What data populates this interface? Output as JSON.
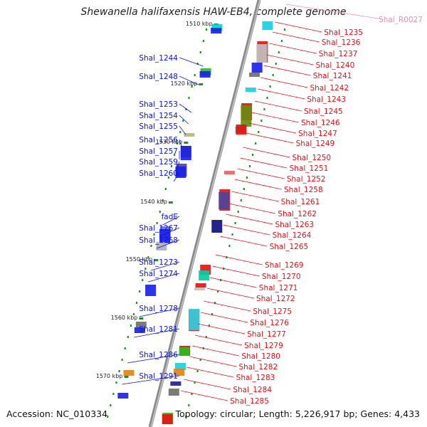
{
  "header": {
    "title": "Shewanella halifaxensis HAW-EB4, complete genome"
  },
  "footer": {
    "accession": "Accession: NC_010334",
    "summary": "Topology: circular; Length: 5,226,917 bp; Genes: 4,433"
  },
  "scale_labels": [
    "1510 kbp",
    "1520 kbp",
    "1530 kbp",
    "1540 kbp",
    "1550 kbp",
    "1560 kbp",
    "1570 kbp"
  ],
  "genes": {
    "reverse_strand": [
      "Shal_1244",
      "Shal_1248",
      "Shal_1253",
      "Shal_1254",
      "Shal_1255",
      "Shal_1256",
      "Shal_1257",
      "Shal_1259",
      "Shal_1260",
      "fadE",
      "Shal_1267",
      "Shal_1268",
      "Shal_1273",
      "Shal_1274",
      "Shal_1278",
      "Shal_1281",
      "Shal_1286",
      "Shal_1291"
    ],
    "forward_strand": [
      "Shal_1235",
      "Shal_1236",
      "Shal_1237",
      "Shal_1240",
      "Shal_1241",
      "Shal_1242",
      "Shal_1243",
      "Shal_1245",
      "Shal_1246",
      "Shal_1247",
      "Shal_1249",
      "Shal_1250",
      "Shal_1251",
      "Shal_1252",
      "Shal_1258",
      "Shal_1261",
      "Shal_1262",
      "Shal_1263",
      "Shal_1264",
      "Shal_1265",
      "Shal_1269",
      "Shal_1270",
      "Shal_1271",
      "Shal_1272",
      "Shal_1275",
      "Shal_1276",
      "Shal_1277",
      "Shal_1279",
      "Shal_1280",
      "Shal_1282",
      "Shal_1283",
      "Shal_1284",
      "Shal_1285"
    ],
    "rna": [
      "Shal_R0027"
    ]
  },
  "colors": {
    "forward": "#e8101a",
    "reverse": "#0a14dd",
    "rna": "#f28cb4",
    "backbone": "#999999",
    "ticks": "#2a8a2a"
  }
}
